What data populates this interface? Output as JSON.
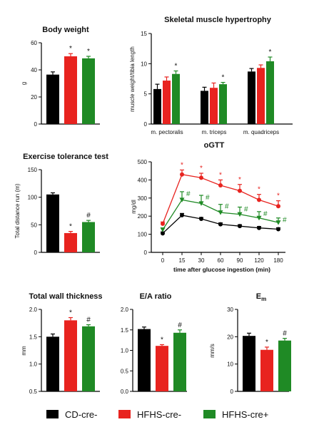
{
  "legend": [
    {
      "name": "CD-cre-",
      "color": "#000000"
    },
    {
      "name": "HFHS-cre-",
      "color": "#e8231f"
    },
    {
      "name": "HFHS-cre+",
      "color": "#1f8a25"
    }
  ],
  "chart_data": [
    {
      "id": "body-weight",
      "type": "bar",
      "title": "Body weight",
      "ylabel": "g",
      "ylim": [
        0,
        60
      ],
      "yticks": [
        "0",
        "20",
        "40",
        "60"
      ],
      "categories": [
        "CD-cre-",
        "HFHS-cre-",
        "HFHS-cre+"
      ],
      "values": [
        36.5,
        50,
        48.5
      ],
      "errors": [
        2,
        2,
        1.5
      ],
      "annotations": [
        "",
        "*",
        "*"
      ]
    },
    {
      "id": "skeletal-muscle",
      "type": "bar",
      "title": "Skeletal muscle hypertrophy",
      "ylabel": "muscle weight/tibia length",
      "ylim": [
        0,
        15
      ],
      "yticks": [
        "0",
        "5",
        "10",
        "15"
      ],
      "categories": [
        "m. pectoralis",
        "m. triceps",
        "m. quadriceps"
      ],
      "series": [
        {
          "name": "CD-cre-",
          "values": [
            5.8,
            5.5,
            8.7
          ],
          "errors": [
            0.8,
            0.6,
            0.5
          ]
        },
        {
          "name": "HFHS-cre-",
          "values": [
            7.2,
            6.0,
            9.3
          ],
          "errors": [
            0.6,
            0.8,
            0.5
          ]
        },
        {
          "name": "HFHS-cre+",
          "values": [
            8.3,
            6.6,
            10.4
          ],
          "errors": [
            0.5,
            0.3,
            0.7
          ]
        }
      ],
      "annotations": [
        [
          "",
          "",
          "*"
        ],
        [
          "",
          "",
          "*"
        ],
        [
          "",
          "",
          "*"
        ]
      ]
    },
    {
      "id": "exercise-tolerance",
      "type": "bar",
      "title": "Exercise tolerance test",
      "ylabel": "Total distance run (m)",
      "ylim": [
        0,
        150
      ],
      "yticks": [
        "0",
        "50",
        "100",
        "150"
      ],
      "categories": [
        "CD-cre-",
        "HFHS-cre-",
        "HFHS-cre+"
      ],
      "values": [
        105,
        35,
        55
      ],
      "errors": [
        3,
        3,
        3
      ],
      "annotations": [
        "",
        "*",
        "#"
      ]
    },
    {
      "id": "ogtt",
      "type": "line",
      "title": "oGTT",
      "xlabel": "time after glucose ingestion (min)",
      "ylabel": "mg/dl",
      "x": [
        0,
        15,
        30,
        60,
        90,
        120,
        180
      ],
      "xticks": [
        "0",
        "15",
        "30",
        "60",
        "90",
        "120",
        "180"
      ],
      "ylim": [
        0,
        500
      ],
      "yticks": [
        "0",
        "100",
        "200",
        "300",
        "400",
        "500"
      ],
      "series": [
        {
          "name": "CD-cre-",
          "values": [
            105,
            205,
            185,
            155,
            145,
            135,
            128
          ],
          "errors": [
            8,
            10,
            8,
            8,
            8,
            8,
            8
          ]
        },
        {
          "name": "HFHS-cre-",
          "values": [
            158,
            430,
            412,
            370,
            340,
            290,
            255
          ],
          "errors": [
            10,
            25,
            25,
            30,
            35,
            30,
            30
          ]
        },
        {
          "name": "HFHS-cre+",
          "values": [
            125,
            290,
            270,
            220,
            210,
            190,
            165
          ],
          "errors": [
            10,
            45,
            45,
            45,
            40,
            35,
            25
          ]
        }
      ],
      "annotations": {
        "HFHS-cre-": [
          "",
          "*",
          "*",
          "*",
          "*",
          "*",
          "*"
        ],
        "HFHS-cre+": [
          "",
          "#",
          "#",
          "#",
          "#",
          "#",
          "#"
        ]
      }
    },
    {
      "id": "wall-thickness",
      "type": "bar",
      "title": "Total wall thickness",
      "ylabel": "mm",
      "ylim": [
        0.5,
        2.0
      ],
      "yticks": [
        "0.5",
        "1.0",
        "1.5",
        "2.0"
      ],
      "categories": [
        "CD-cre-",
        "HFHS-cre-",
        "HFHS-cre+"
      ],
      "values": [
        1.5,
        1.8,
        1.69
      ],
      "errors": [
        0.05,
        0.05,
        0.03
      ],
      "annotations": [
        "",
        "*",
        "#"
      ]
    },
    {
      "id": "ea-ratio",
      "type": "bar",
      "title": "E/A ratio",
      "ylabel": "",
      "ylim": [
        0.0,
        2.0
      ],
      "yticks": [
        "0.0",
        "0.5",
        "1.0",
        "1.5",
        "2.0"
      ],
      "categories": [
        "CD-cre-",
        "HFHS-cre-",
        "HFHS-cre+"
      ],
      "values": [
        1.52,
        1.11,
        1.43
      ],
      "errors": [
        0.05,
        0.03,
        0.07
      ],
      "annotations": [
        "",
        "*",
        "#"
      ]
    },
    {
      "id": "em",
      "type": "bar",
      "title": "E",
      "title_sub": "m",
      "ylabel": "mm/s",
      "ylim": [
        0,
        30
      ],
      "yticks": [
        "0",
        "10",
        "20",
        "30"
      ],
      "categories": [
        "CD-cre-",
        "HFHS-cre-",
        "HFHS-cre+"
      ],
      "values": [
        20.3,
        15.2,
        18.6
      ],
      "errors": [
        1.0,
        1.0,
        0.8
      ],
      "annotations": [
        "",
        "*",
        "#"
      ]
    }
  ]
}
